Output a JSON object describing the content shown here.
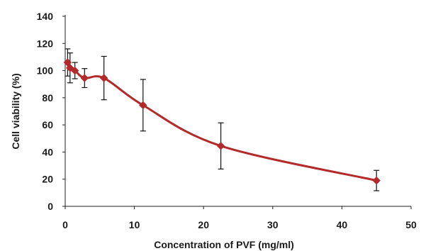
{
  "chart_data": {
    "type": "line",
    "title": "",
    "xlabel": "Concentration of PVF (mg/ml)",
    "ylabel": "Cell viability (%)",
    "xlim": [
      0,
      50
    ],
    "ylim": [
      0,
      140
    ],
    "xticks": [
      0,
      10,
      20,
      30,
      40,
      50
    ],
    "yticks": [
      0,
      20,
      40,
      60,
      80,
      100,
      120,
      140
    ],
    "grid": false,
    "legend": "none",
    "smooth": true,
    "series": [
      {
        "color": "#b22a2a",
        "marker": "diamond",
        "points": [
          {
            "x": 0.35,
            "y": 106,
            "err": 10
          },
          {
            "x": 0.7,
            "y": 102,
            "err": 11
          },
          {
            "x": 1.4,
            "y": 100,
            "err": 6
          },
          {
            "x": 2.8,
            "y": 94.5,
            "err": 7
          },
          {
            "x": 5.6,
            "y": 94.5,
            "err": 16
          },
          {
            "x": 11.25,
            "y": 74.5,
            "err": 19
          },
          {
            "x": 22.5,
            "y": 44.5,
            "err": 17
          },
          {
            "x": 45,
            "y": 19,
            "err": 7.5
          }
        ]
      }
    ]
  }
}
